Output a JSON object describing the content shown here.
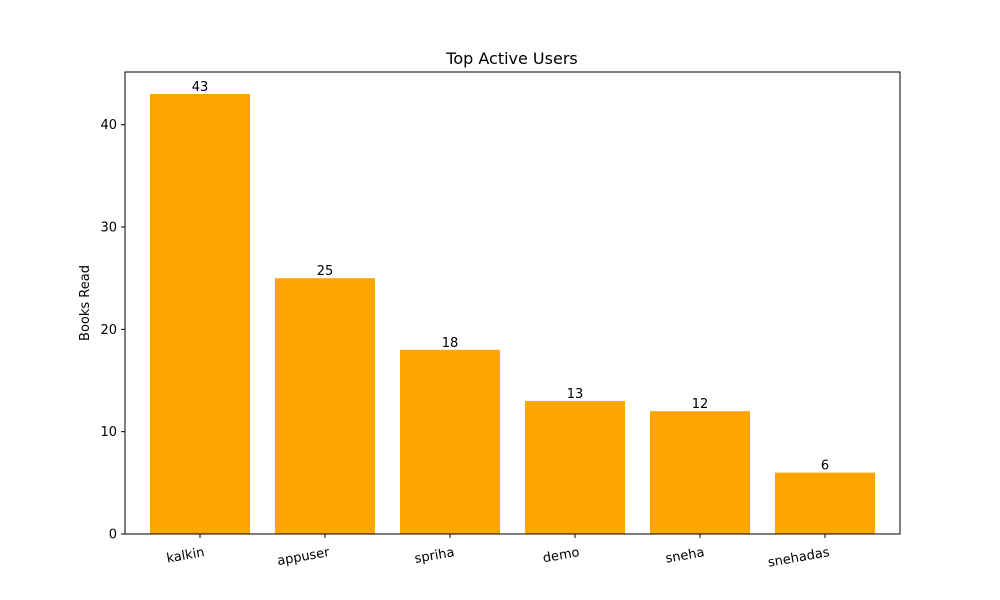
{
  "chart_data": {
    "type": "bar",
    "title": "Top Active Users",
    "xlabel": "",
    "ylabel": "Books Read",
    "categories": [
      "kalkin",
      "appuser",
      "spriha",
      "demo",
      "sneha",
      "snehadas"
    ],
    "values": [
      43,
      25,
      18,
      13,
      12,
      6
    ],
    "ylim": [
      0,
      45.15
    ],
    "yticks": [
      0,
      10,
      20,
      30,
      40
    ],
    "bar_color": "#FFA500",
    "grid": false,
    "legend": "none",
    "xtick_rotation_deg": 10
  }
}
